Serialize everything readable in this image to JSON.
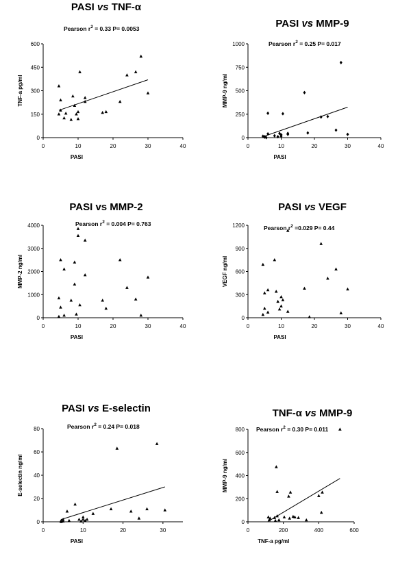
{
  "chart_data": [
    {
      "type": "scatter",
      "title": "PASI vs TNF-α",
      "title_parts": [
        "PASI ",
        "vs",
        " TNF-α"
      ],
      "stat": {
        "prefix": "Pearson  r",
        "sup": "2",
        "suffix": " = 0.33    P= 0.0053"
      },
      "xlabel": "PASI",
      "ylabel": "TNF-a  pg/ml",
      "xlim": [
        0,
        40
      ],
      "ylim": [
        0,
        600
      ],
      "xticks": [
        0,
        10,
        20,
        30,
        40
      ],
      "yticks": [
        0,
        150,
        300,
        450,
        600
      ],
      "marker": "triangle",
      "fit_line": {
        "x": [
          4.5,
          30
        ],
        "y": [
          175,
          370
        ]
      },
      "points": [
        {
          "x": 4.5,
          "y": 330
        },
        {
          "x": 4.5,
          "y": 150
        },
        {
          "x": 5,
          "y": 240
        },
        {
          "x": 5,
          "y": 175
        },
        {
          "x": 6,
          "y": 125
        },
        {
          "x": 6.5,
          "y": 155
        },
        {
          "x": 8,
          "y": 115
        },
        {
          "x": 8.5,
          "y": 265
        },
        {
          "x": 9,
          "y": 205
        },
        {
          "x": 9.5,
          "y": 150
        },
        {
          "x": 10,
          "y": 120
        },
        {
          "x": 10,
          "y": 165
        },
        {
          "x": 10.5,
          "y": 420
        },
        {
          "x": 12,
          "y": 230
        },
        {
          "x": 12,
          "y": 255
        },
        {
          "x": 17,
          "y": 160
        },
        {
          "x": 18,
          "y": 165
        },
        {
          "x": 22,
          "y": 230
        },
        {
          "x": 24,
          "y": 400
        },
        {
          "x": 26.5,
          "y": 420
        },
        {
          "x": 28,
          "y": 520
        },
        {
          "x": 30,
          "y": 285
        }
      ]
    },
    {
      "type": "scatter",
      "title": "PASI vs MMP-9",
      "title_parts": [
        "PASI ",
        "vs",
        " MMP-9"
      ],
      "stat": {
        "prefix": "Pearson  r",
        "sup": "2",
        "suffix": " = 0.25    P= 0.017"
      },
      "xlabel": "PASI",
      "ylabel": "MMP-9  ng/ml",
      "xlim": [
        0,
        40
      ],
      "ylim": [
        0,
        1000
      ],
      "xticks": [
        0,
        10,
        20,
        30,
        40
      ],
      "yticks": [
        0,
        250,
        500,
        750,
        1000
      ],
      "marker": "diamond",
      "fit_line": {
        "x": [
          4.5,
          30
        ],
        "y": [
          10,
          325
        ]
      },
      "points": [
        {
          "x": 4.5,
          "y": 15
        },
        {
          "x": 5,
          "y": 10
        },
        {
          "x": 5,
          "y": 5
        },
        {
          "x": 5.5,
          "y": 0
        },
        {
          "x": 6,
          "y": 260
        },
        {
          "x": 6,
          "y": 40
        },
        {
          "x": 8,
          "y": 20
        },
        {
          "x": 9,
          "y": 10
        },
        {
          "x": 9.5,
          "y": 45
        },
        {
          "x": 10,
          "y": 30
        },
        {
          "x": 10,
          "y": 15
        },
        {
          "x": 10.5,
          "y": 255
        },
        {
          "x": 12,
          "y": 35
        },
        {
          "x": 12,
          "y": 45
        },
        {
          "x": 17,
          "y": 480
        },
        {
          "x": 18,
          "y": 50
        },
        {
          "x": 22,
          "y": 220
        },
        {
          "x": 24,
          "y": 225
        },
        {
          "x": 26.5,
          "y": 80
        },
        {
          "x": 28,
          "y": 800
        },
        {
          "x": 30,
          "y": 35
        }
      ]
    },
    {
      "type": "scatter",
      "title": "PASI vs MMP-2",
      "title_parts": [
        "PASI vs MMP-2"
      ],
      "stat": {
        "prefix": "Pearson  r",
        "sup": "2",
        "suffix": " = 0.004    P= 0.763"
      },
      "xlabel": "PASI",
      "ylabel": "MMP-2  ng/ml",
      "xlim": [
        0,
        40
      ],
      "ylim": [
        0,
        4000
      ],
      "xticks": [
        0,
        10,
        20,
        30,
        40
      ],
      "yticks": [
        0,
        1000,
        2000,
        3000,
        4000
      ],
      "marker": "triangle",
      "fit_line": null,
      "points": [
        {
          "x": 4.5,
          "y": 850
        },
        {
          "x": 4.5,
          "y": 50
        },
        {
          "x": 5,
          "y": 2500
        },
        {
          "x": 5,
          "y": 450
        },
        {
          "x": 6,
          "y": 2100
        },
        {
          "x": 6,
          "y": 100
        },
        {
          "x": 8,
          "y": 750
        },
        {
          "x": 9,
          "y": 2400
        },
        {
          "x": 9,
          "y": 1450
        },
        {
          "x": 9.5,
          "y": 150
        },
        {
          "x": 10,
          "y": 3850
        },
        {
          "x": 10,
          "y": 3550
        },
        {
          "x": 10.5,
          "y": 550
        },
        {
          "x": 12,
          "y": 3350
        },
        {
          "x": 12,
          "y": 1850
        },
        {
          "x": 17,
          "y": 750
        },
        {
          "x": 18,
          "y": 400
        },
        {
          "x": 22,
          "y": 2500
        },
        {
          "x": 24,
          "y": 1300
        },
        {
          "x": 26.5,
          "y": 800
        },
        {
          "x": 28,
          "y": 100
        },
        {
          "x": 30,
          "y": 1750
        }
      ]
    },
    {
      "type": "scatter",
      "title": "PASI vs VEGF",
      "title_parts": [
        "PASI ",
        "vs",
        " VEGF"
      ],
      "stat": {
        "prefix": "Pearson  r",
        "sup": "2",
        "suffix": " =0.029    P= 0.44"
      },
      "xlabel": "PASI",
      "ylabel": "VEGF ng/ml",
      "xlim": [
        0,
        40
      ],
      "ylim": [
        0,
        1200
      ],
      "xticks": [
        0,
        10,
        20,
        30,
        40
      ],
      "yticks": [
        0,
        300,
        600,
        900,
        1200
      ],
      "marker": "triangle",
      "fit_line": null,
      "points": [
        {
          "x": 4.5,
          "y": 690
        },
        {
          "x": 4.5,
          "y": 40
        },
        {
          "x": 5,
          "y": 320
        },
        {
          "x": 5,
          "y": 120
        },
        {
          "x": 6,
          "y": 360
        },
        {
          "x": 6,
          "y": 70
        },
        {
          "x": 8,
          "y": 750
        },
        {
          "x": 8.5,
          "y": 340
        },
        {
          "x": 9,
          "y": 210
        },
        {
          "x": 9.5,
          "y": 110
        },
        {
          "x": 10,
          "y": 270
        },
        {
          "x": 10,
          "y": 150
        },
        {
          "x": 10.5,
          "y": 230
        },
        {
          "x": 12,
          "y": 1130
        },
        {
          "x": 12,
          "y": 80
        },
        {
          "x": 17,
          "y": 380
        },
        {
          "x": 18.5,
          "y": 10
        },
        {
          "x": 22,
          "y": 960
        },
        {
          "x": 24,
          "y": 510
        },
        {
          "x": 26.5,
          "y": 630
        },
        {
          "x": 28,
          "y": 60
        },
        {
          "x": 30,
          "y": 370
        }
      ]
    },
    {
      "type": "scatter",
      "title": "PASI vs E-selectin",
      "title_parts": [
        "PASI ",
        "vs",
        " E-selectin"
      ],
      "stat": {
        "prefix": "Pearson  r",
        "sup": "2",
        "suffix": " = 0.24    P= 0.018"
      },
      "xlabel": "PASI",
      "ylabel": "E-selectin  ng/ml",
      "xlim": [
        0,
        35
      ],
      "ylim": [
        0,
        80
      ],
      "xticks": [
        0,
        10,
        20,
        30
      ],
      "yticks": [
        0,
        20,
        40,
        60,
        80
      ],
      "marker": "triangle",
      "fit_line": {
        "x": [
          4.5,
          30.5
        ],
        "y": [
          2,
          30
        ]
      },
      "points": [
        {
          "x": 4.5,
          "y": 1
        },
        {
          "x": 4.5,
          "y": 0
        },
        {
          "x": 5,
          "y": 2
        },
        {
          "x": 5,
          "y": 0.5
        },
        {
          "x": 6,
          "y": 9
        },
        {
          "x": 6.5,
          "y": 1
        },
        {
          "x": 8,
          "y": 15
        },
        {
          "x": 9,
          "y": 2
        },
        {
          "x": 9.5,
          "y": 0.5
        },
        {
          "x": 10,
          "y": 4
        },
        {
          "x": 10,
          "y": 2
        },
        {
          "x": 10.5,
          "y": 1
        },
        {
          "x": 11,
          "y": 2
        },
        {
          "x": 12.5,
          "y": 7
        },
        {
          "x": 17,
          "y": 11
        },
        {
          "x": 18.5,
          "y": 63
        },
        {
          "x": 22,
          "y": 9
        },
        {
          "x": 24,
          "y": 3
        },
        {
          "x": 26,
          "y": 11
        },
        {
          "x": 28.5,
          "y": 67
        },
        {
          "x": 30.5,
          "y": 10
        }
      ]
    },
    {
      "type": "scatter",
      "title": "TNF-α vs MMP-9",
      "title_parts": [
        "TNF-α ",
        "vs",
        " MMP-9"
      ],
      "stat": {
        "prefix": "Pearson  r",
        "sup": "2",
        "suffix": " = 0.30    P= 0.011"
      },
      "xlabel": "TNF-a  pg/ml",
      "ylabel": "MMP-9  ng/ml",
      "xlim": [
        0,
        600
      ],
      "ylim": [
        0,
        800
      ],
      "xticks": [
        0,
        200,
        400,
        600
      ],
      "yticks": [
        0,
        200,
        400,
        600,
        800
      ],
      "marker": "triangle",
      "fit_line": {
        "x": [
          115,
          520
        ],
        "y": [
          5,
          375
        ]
      },
      "points": [
        {
          "x": 115,
          "y": 40
        },
        {
          "x": 120,
          "y": 15
        },
        {
          "x": 125,
          "y": 30
        },
        {
          "x": 150,
          "y": 35
        },
        {
          "x": 155,
          "y": 10
        },
        {
          "x": 160,
          "y": 475
        },
        {
          "x": 165,
          "y": 50
        },
        {
          "x": 165,
          "y": 260
        },
        {
          "x": 175,
          "y": 15
        },
        {
          "x": 205,
          "y": 40
        },
        {
          "x": 230,
          "y": 220
        },
        {
          "x": 235,
          "y": 30
        },
        {
          "x": 240,
          "y": 255
        },
        {
          "x": 255,
          "y": 45
        },
        {
          "x": 265,
          "y": 40
        },
        {
          "x": 285,
          "y": 35
        },
        {
          "x": 330,
          "y": 15
        },
        {
          "x": 400,
          "y": 225
        },
        {
          "x": 415,
          "y": 80
        },
        {
          "x": 420,
          "y": 255
        },
        {
          "x": 520,
          "y": 800
        }
      ]
    }
  ]
}
